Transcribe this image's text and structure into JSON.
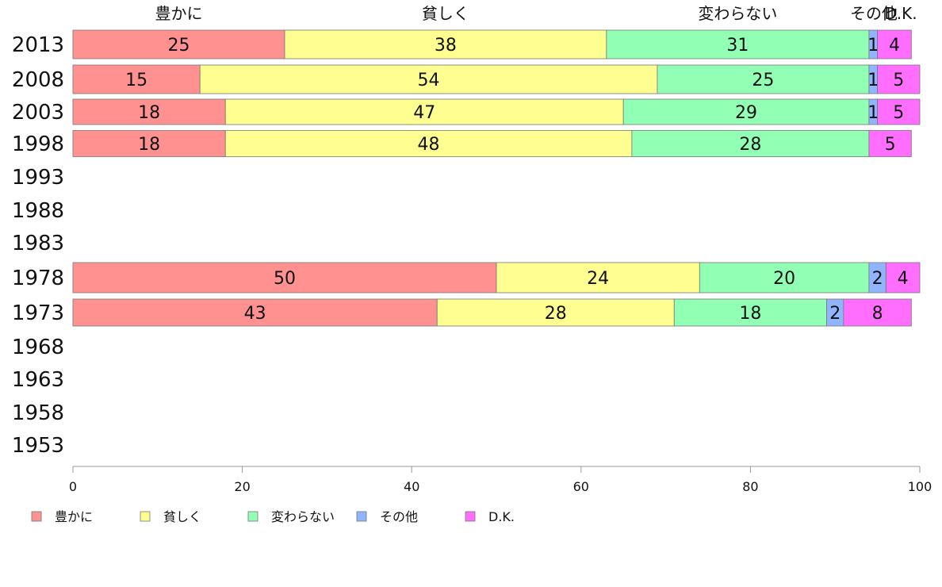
{
  "chart_data": {
    "type": "bar",
    "orientation": "horizontal",
    "stacked": true,
    "categories": [
      "2013",
      "2008",
      "2003",
      "1998",
      "1993",
      "1988",
      "1983",
      "1978",
      "1973",
      "1968",
      "1963",
      "1958",
      "1953"
    ],
    "series": [
      {
        "name": "豊かに",
        "color": "#ff9191",
        "values": [
          25,
          15,
          18,
          18,
          null,
          null,
          null,
          50,
          43,
          null,
          null,
          null,
          null
        ]
      },
      {
        "name": "貧しく",
        "color": "#ffff91",
        "values": [
          38,
          54,
          47,
          48,
          null,
          null,
          null,
          24,
          28,
          null,
          null,
          null,
          null
        ]
      },
      {
        "name": "変わらない",
        "color": "#91ffb4",
        "values": [
          31,
          25,
          29,
          28,
          null,
          null,
          null,
          20,
          18,
          null,
          null,
          null,
          null
        ]
      },
      {
        "name": "その他",
        "color": "#91b4ff",
        "values": [
          1,
          1,
          1,
          0,
          null,
          null,
          null,
          2,
          2,
          null,
          null,
          null,
          null
        ]
      },
      {
        "name": "D.K.",
        "color": "#ff6eff",
        "values": [
          4,
          5,
          5,
          5,
          null,
          null,
          null,
          4,
          8,
          null,
          null,
          null,
          null
        ]
      }
    ],
    "top_labels": [
      "豊かに",
      "貧しく",
      "変わらない",
      "その他",
      "D.K."
    ],
    "xlim": [
      0,
      100
    ],
    "xticks": [
      0,
      20,
      40,
      60,
      80,
      100
    ],
    "legend": {
      "position": "bottom-left",
      "entries": [
        "豊かに",
        "貧しく",
        "変わらない",
        "その他",
        "D.K."
      ]
    },
    "grid": false
  }
}
